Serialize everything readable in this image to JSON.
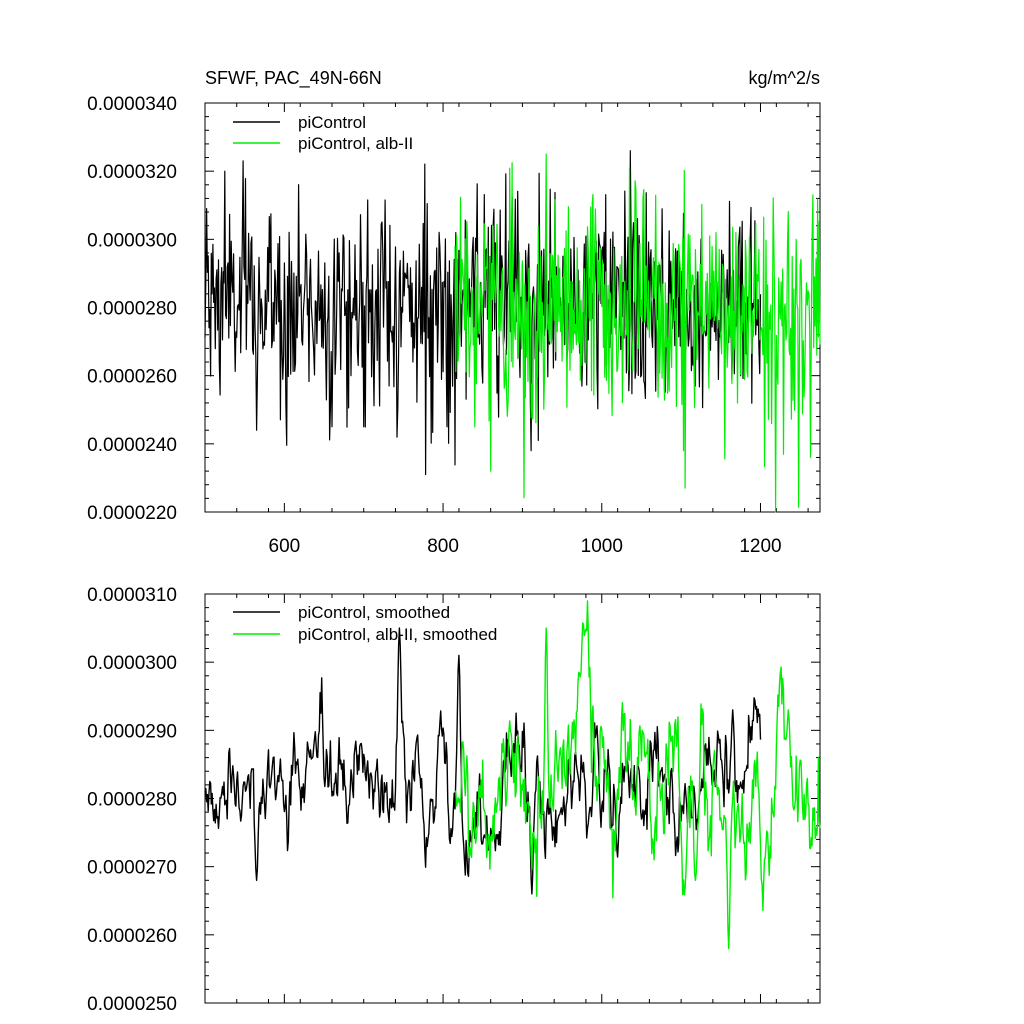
{
  "panels": [
    {
      "title_left": "SFWF, PAC_49N-66N",
      "title_right": "kg/m^2/s",
      "legend": [
        "piControl",
        "piControl, alb-II"
      ]
    },
    {
      "title_left": "",
      "title_right": "",
      "legend": [
        "piControl, smoothed",
        "piControl, alb-II, smoothed"
      ]
    }
  ],
  "colors": {
    "piControl": "#000000",
    "alb_II": "#00ee00"
  },
  "chart_data": [
    {
      "type": "line",
      "title": "SFWF, PAC_49N-66N",
      "units": "kg/m^2/s",
      "xlim": [
        500,
        1275
      ],
      "ylim": [
        2.2e-05,
        3.4e-05
      ],
      "xticks": [
        600,
        800,
        1000,
        1200
      ],
      "xtick_labels": [
        "600",
        "800",
        "1000",
        "1200"
      ],
      "yticks": [
        2.2e-05,
        2.4e-05,
        2.6e-05,
        2.8e-05,
        3e-05,
        3.2e-05,
        3.4e-05
      ],
      "ytick_labels": [
        "0.0000220",
        "0.0000240",
        "0.0000260",
        "0.0000280",
        "0.0000300",
        "0.0000320",
        "0.0000340"
      ],
      "legend_position": "top-left",
      "series": [
        {
          "name": "piControl",
          "color": "#000000",
          "x_range": [
            500,
            1200
          ],
          "mean": 2.81e-05,
          "std": 1.5e-06,
          "peaks": [
            {
              "x": 525,
              "y": 3.2e-05
            },
            {
              "x": 548,
              "y": 3.23e-05
            },
            {
              "x": 565,
              "y": 2.44e-05
            },
            {
              "x": 660,
              "y": 2.45e-05
            },
            {
              "x": 700,
              "y": 2.45e-05
            },
            {
              "x": 778,
              "y": 2.31e-05
            },
            {
              "x": 1036,
              "y": 3.26e-05
            },
            {
              "x": 920,
              "y": 2.41e-05
            }
          ]
        },
        {
          "name": "piControl, alb-II",
          "color": "#00ee00",
          "x_range": [
            815,
            1275
          ],
          "mean": 2.79e-05,
          "std": 1.7e-06,
          "peaks": [
            {
              "x": 860,
              "y": 2.32e-05
            },
            {
              "x": 1105,
              "y": 2.27e-05
            },
            {
              "x": 930,
              "y": 3.25e-05
            },
            {
              "x": 1035,
              "y": 3.21e-05
            }
          ]
        }
      ]
    },
    {
      "type": "line",
      "xlim": [
        500,
        1275
      ],
      "ylim": [
        2.5e-05,
        3.1e-05
      ],
      "xticks": [
        600,
        800,
        1000,
        1200
      ],
      "yticks": [
        2.5e-05,
        2.6e-05,
        2.7e-05,
        2.8e-05,
        2.9e-05,
        3e-05,
        3.1e-05
      ],
      "ytick_labels": [
        "0.0000250",
        "0.0000260",
        "0.0000270",
        "0.0000280",
        "0.0000290",
        "0.0000300",
        "0.0000310"
      ],
      "legend_position": "top-left",
      "series": [
        {
          "name": "piControl, smoothed",
          "color": "#000000",
          "x_range": [
            500,
            1200
          ],
          "mean": 2.82e-05,
          "std": 6e-07,
          "peaks": [
            {
              "x": 565,
              "y": 2.68e-05
            },
            {
              "x": 745,
              "y": 3.05e-05
            },
            {
              "x": 820,
              "y": 3.01e-05
            },
            {
              "x": 912,
              "y": 2.66e-05
            },
            {
              "x": 1165,
              "y": 2.93e-05
            }
          ]
        },
        {
          "name": "piControl, alb-II, smoothed",
          "color": "#00ee00",
          "x_range": [
            815,
            1275
          ],
          "mean": 2.81e-05,
          "std": 8e-07,
          "peaks": [
            {
              "x": 930,
              "y": 3.05e-05
            },
            {
              "x": 1160,
              "y": 2.58e-05
            },
            {
              "x": 1118,
              "y": 2.68e-05
            },
            {
              "x": 1235,
              "y": 2.93e-05
            }
          ]
        }
      ]
    }
  ]
}
